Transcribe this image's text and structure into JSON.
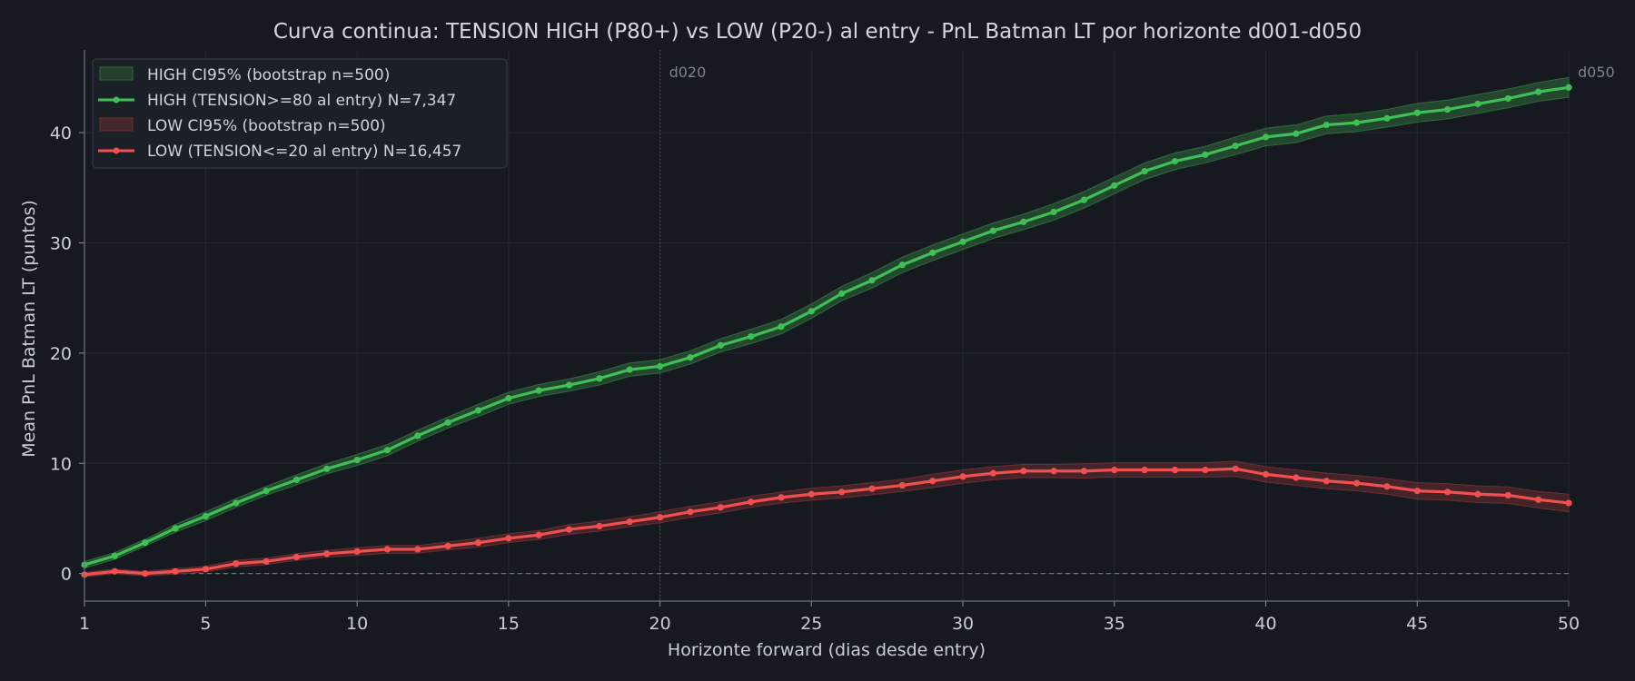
{
  "chart_data": {
    "type": "line",
    "title": "Curva continua: TENSION HIGH (P80+) vs LOW (P20-) al entry  -  PnL Batman LT por horizonte d001-d050",
    "xlabel": "Horizonte forward (dias desde entry)",
    "ylabel": "Mean PnL Batman LT (puntos)",
    "xlim": [
      1,
      50
    ],
    "ylim": [
      -2.5,
      47.5
    ],
    "x_ticks": [
      1,
      5,
      10,
      15,
      20,
      25,
      30,
      35,
      40,
      45,
      50
    ],
    "y_ticks": [
      0,
      10,
      20,
      30,
      40
    ],
    "grid": true,
    "legend_position": "top-left",
    "reference_lines": [
      {
        "axis": "x",
        "value": 20,
        "label": "d020",
        "style": "dotted"
      },
      {
        "axis": "x",
        "value": 50,
        "label": "d050",
        "style": "none"
      },
      {
        "axis": "y",
        "value": 0,
        "label": "",
        "style": "dashed"
      }
    ],
    "x": [
      1,
      2,
      3,
      4,
      5,
      6,
      7,
      8,
      9,
      10,
      11,
      12,
      13,
      14,
      15,
      16,
      17,
      18,
      19,
      20,
      21,
      22,
      23,
      24,
      25,
      26,
      27,
      28,
      29,
      30,
      31,
      32,
      33,
      34,
      35,
      36,
      37,
      38,
      39,
      40,
      41,
      42,
      43,
      44,
      45,
      46,
      47,
      48,
      49,
      50
    ],
    "series": [
      {
        "name": "HIGH (TENSION>=80 al entry)  N=7,347",
        "band_name": "HIGH CI95% (bootstrap n=500)",
        "color": "#3fbf55",
        "band_color": "#2e6b3a",
        "values": [
          0.8,
          1.6,
          2.8,
          4.1,
          5.2,
          6.4,
          7.5,
          8.5,
          9.5,
          10.3,
          11.2,
          12.5,
          13.7,
          14.8,
          15.9,
          16.6,
          17.1,
          17.7,
          18.5,
          18.8,
          19.6,
          20.7,
          21.5,
          22.4,
          23.8,
          25.4,
          26.6,
          28.0,
          29.1,
          30.1,
          31.1,
          31.9,
          32.8,
          33.9,
          35.2,
          36.5,
          37.4,
          38.0,
          38.8,
          39.6,
          39.9,
          40.7,
          40.9,
          41.3,
          41.8,
          42.1,
          42.6,
          43.1,
          43.7,
          44.1
        ],
        "ci_half": [
          0.3,
          0.3,
          0.3,
          0.35,
          0.4,
          0.4,
          0.4,
          0.45,
          0.45,
          0.5,
          0.5,
          0.5,
          0.5,
          0.55,
          0.55,
          0.55,
          0.55,
          0.6,
          0.6,
          0.6,
          0.6,
          0.6,
          0.65,
          0.65,
          0.65,
          0.65,
          0.7,
          0.7,
          0.7,
          0.7,
          0.7,
          0.7,
          0.75,
          0.75,
          0.75,
          0.75,
          0.75,
          0.75,
          0.8,
          0.8,
          0.8,
          0.8,
          0.8,
          0.8,
          0.85,
          0.85,
          0.85,
          0.85,
          0.85,
          0.9
        ]
      },
      {
        "name": "LOW (TENSION<=20 al entry)  N=16,457",
        "band_name": "LOW CI95% (bootstrap n=500)",
        "color": "#f05050",
        "band_color": "#6b2e32",
        "values": [
          -0.1,
          0.2,
          0.0,
          0.2,
          0.4,
          0.9,
          1.1,
          1.5,
          1.8,
          2.0,
          2.2,
          2.2,
          2.5,
          2.8,
          3.2,
          3.5,
          4.0,
          4.3,
          4.7,
          5.1,
          5.6,
          6.0,
          6.5,
          6.9,
          7.2,
          7.4,
          7.7,
          8.0,
          8.4,
          8.8,
          9.1,
          9.3,
          9.3,
          9.3,
          9.4,
          9.4,
          9.4,
          9.4,
          9.5,
          9.0,
          8.7,
          8.4,
          8.2,
          7.9,
          7.5,
          7.4,
          7.2,
          7.1,
          6.7,
          6.4
        ],
        "ci_half": [
          0.2,
          0.2,
          0.2,
          0.25,
          0.25,
          0.3,
          0.3,
          0.3,
          0.3,
          0.35,
          0.35,
          0.35,
          0.35,
          0.4,
          0.4,
          0.4,
          0.45,
          0.45,
          0.45,
          0.5,
          0.5,
          0.5,
          0.5,
          0.5,
          0.55,
          0.55,
          0.55,
          0.55,
          0.6,
          0.6,
          0.6,
          0.6,
          0.6,
          0.65,
          0.65,
          0.65,
          0.65,
          0.65,
          0.7,
          0.7,
          0.7,
          0.7,
          0.7,
          0.7,
          0.75,
          0.75,
          0.75,
          0.75,
          0.75,
          0.8
        ]
      }
    ]
  }
}
